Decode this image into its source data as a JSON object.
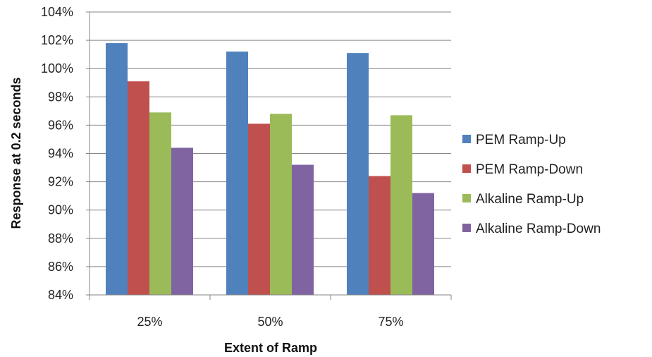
{
  "chart_data": {
    "type": "bar",
    "xlabel": "Extent of Ramp",
    "ylabel": "Response at 0.2 seconds",
    "categories": [
      "25%",
      "50%",
      "75%"
    ],
    "ylim": [
      84,
      104
    ],
    "ytick_step": 2,
    "y_tick_labels": [
      "84%",
      "86%",
      "88%",
      "90%",
      "92%",
      "94%",
      "96%",
      "98%",
      "100%",
      "102%",
      "104%"
    ],
    "grid": true,
    "legend_position": "right",
    "series": [
      {
        "name": "PEM Ramp-Up",
        "color": "#4F81BD",
        "values": [
          101.8,
          101.2,
          101.1
        ]
      },
      {
        "name": "PEM Ramp-Down",
        "color": "#C0504D",
        "values": [
          99.1,
          96.1,
          92.4
        ]
      },
      {
        "name": "Alkaline Ramp-Up",
        "color": "#9BBB59",
        "values": [
          96.9,
          96.8,
          96.7
        ]
      },
      {
        "name": "Alkaline Ramp-Down",
        "color": "#8064A2",
        "values": [
          94.4,
          93.2,
          91.2
        ]
      }
    ]
  }
}
